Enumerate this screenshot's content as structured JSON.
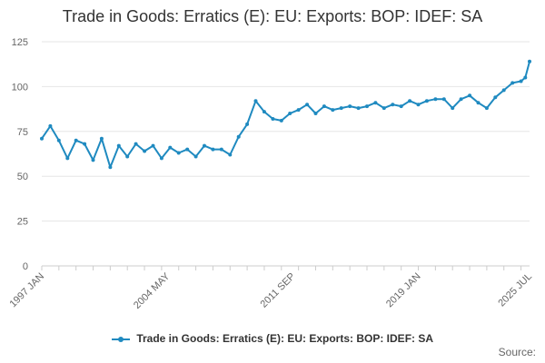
{
  "chart_data": {
    "type": "line",
    "title": "Trade in Goods: Erratics (E): EU: Exports: BOP: IDEF: SA",
    "xlabel": "",
    "ylabel": "",
    "ylim": [
      0,
      125
    ],
    "y_ticks": [
      0,
      25,
      50,
      75,
      100,
      125
    ],
    "x_tick_labels": [
      "1997 JAN",
      "2004 MAY",
      "2011 SEP",
      "2019 JAN",
      "2025 JUL"
    ],
    "x_range": [
      "1997-01",
      "2025-07"
    ],
    "grid": true,
    "legend_position": "bottom",
    "series": [
      {
        "name": "Trade in Goods: Erratics (E): EU: Exports: BOP: IDEF: SA",
        "color": "#1f8ac0",
        "x": [
          "1997-01",
          "1997-07",
          "1998-01",
          "1998-07",
          "1999-01",
          "1999-07",
          "2000-01",
          "2000-07",
          "2001-01",
          "2001-07",
          "2002-01",
          "2002-07",
          "2003-01",
          "2003-07",
          "2004-01",
          "2004-07",
          "2005-01",
          "2005-07",
          "2006-01",
          "2006-07",
          "2007-01",
          "2007-07",
          "2008-01",
          "2008-07",
          "2009-01",
          "2009-07",
          "2010-01",
          "2010-07",
          "2011-01",
          "2011-07",
          "2012-01",
          "2012-07",
          "2013-01",
          "2013-07",
          "2014-01",
          "2014-07",
          "2015-01",
          "2015-07",
          "2016-01",
          "2016-07",
          "2017-01",
          "2017-07",
          "2018-01",
          "2018-07",
          "2019-01",
          "2019-07",
          "2020-01",
          "2020-07",
          "2021-01",
          "2021-07",
          "2022-01",
          "2022-07",
          "2023-01",
          "2023-07",
          "2024-01",
          "2024-07",
          "2025-01",
          "2025-04",
          "2025-07"
        ],
        "values": [
          71,
          78,
          70,
          60,
          70,
          68,
          59,
          71,
          55,
          67,
          61,
          68,
          64,
          67,
          60,
          66,
          63,
          65,
          61,
          67,
          65,
          65,
          62,
          72,
          79,
          92,
          86,
          82,
          81,
          85,
          87,
          90,
          85,
          89,
          87,
          88,
          89,
          88,
          89,
          91,
          88,
          90,
          89,
          92,
          90,
          92,
          93,
          93,
          88,
          93,
          95,
          91,
          88,
          94,
          98,
          102,
          103,
          105,
          114
        ]
      }
    ],
    "source_label": "Source:"
  }
}
